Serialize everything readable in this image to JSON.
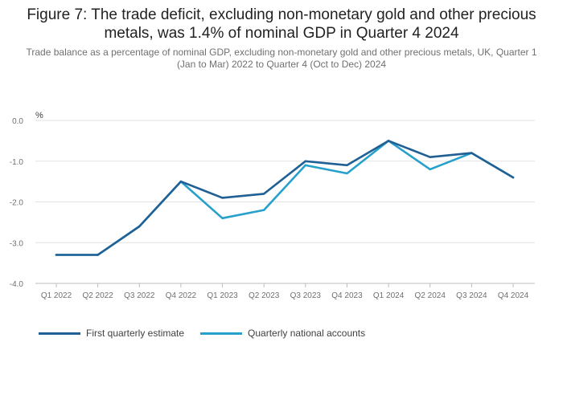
{
  "title": "Figure 7: The trade deficit, excluding non-monetary gold and other precious metals, was 1.4% of nominal GDP in Quarter 4 2024",
  "subtitle": "Trade balance as a percentage of nominal GDP, excluding non-monetary gold and other precious metals, UK, Quarter 1 (Jan to Mar) 2022 to Quarter 4 (Oct to Dec) 2024",
  "chart_data": {
    "type": "line",
    "ylabel": "%",
    "ylim": [
      -4.0,
      0.0
    ],
    "yticks": [
      0.0,
      -1.0,
      -2.0,
      -3.0,
      -4.0
    ],
    "ytick_labels": [
      "0.0",
      "-1.0",
      "-2.0",
      "-3.0",
      "-4.0"
    ],
    "grid": true,
    "legend_position": "bottom-left",
    "categories": [
      "Q1 2022",
      "Q2 2022",
      "Q3 2022",
      "Q4 2022",
      "Q1 2023",
      "Q2 2023",
      "Q3 2023",
      "Q4 2023",
      "Q1 2024",
      "Q2 2024",
      "Q3 2024",
      "Q4 2024"
    ],
    "series": [
      {
        "name": "First quarterly estimate",
        "color": "#206095",
        "values": [
          -3.3,
          -3.3,
          -2.6,
          -1.5,
          -1.9,
          -1.8,
          -1.0,
          -1.1,
          -0.5,
          -0.9,
          -0.8,
          -1.4
        ]
      },
      {
        "name": "Quarterly national accounts",
        "color": "#27a0cc",
        "values": [
          -3.3,
          -3.3,
          -2.6,
          -1.5,
          -2.4,
          -2.2,
          -1.1,
          -1.3,
          -0.5,
          -1.2,
          -0.8,
          -1.4
        ]
      }
    ]
  }
}
